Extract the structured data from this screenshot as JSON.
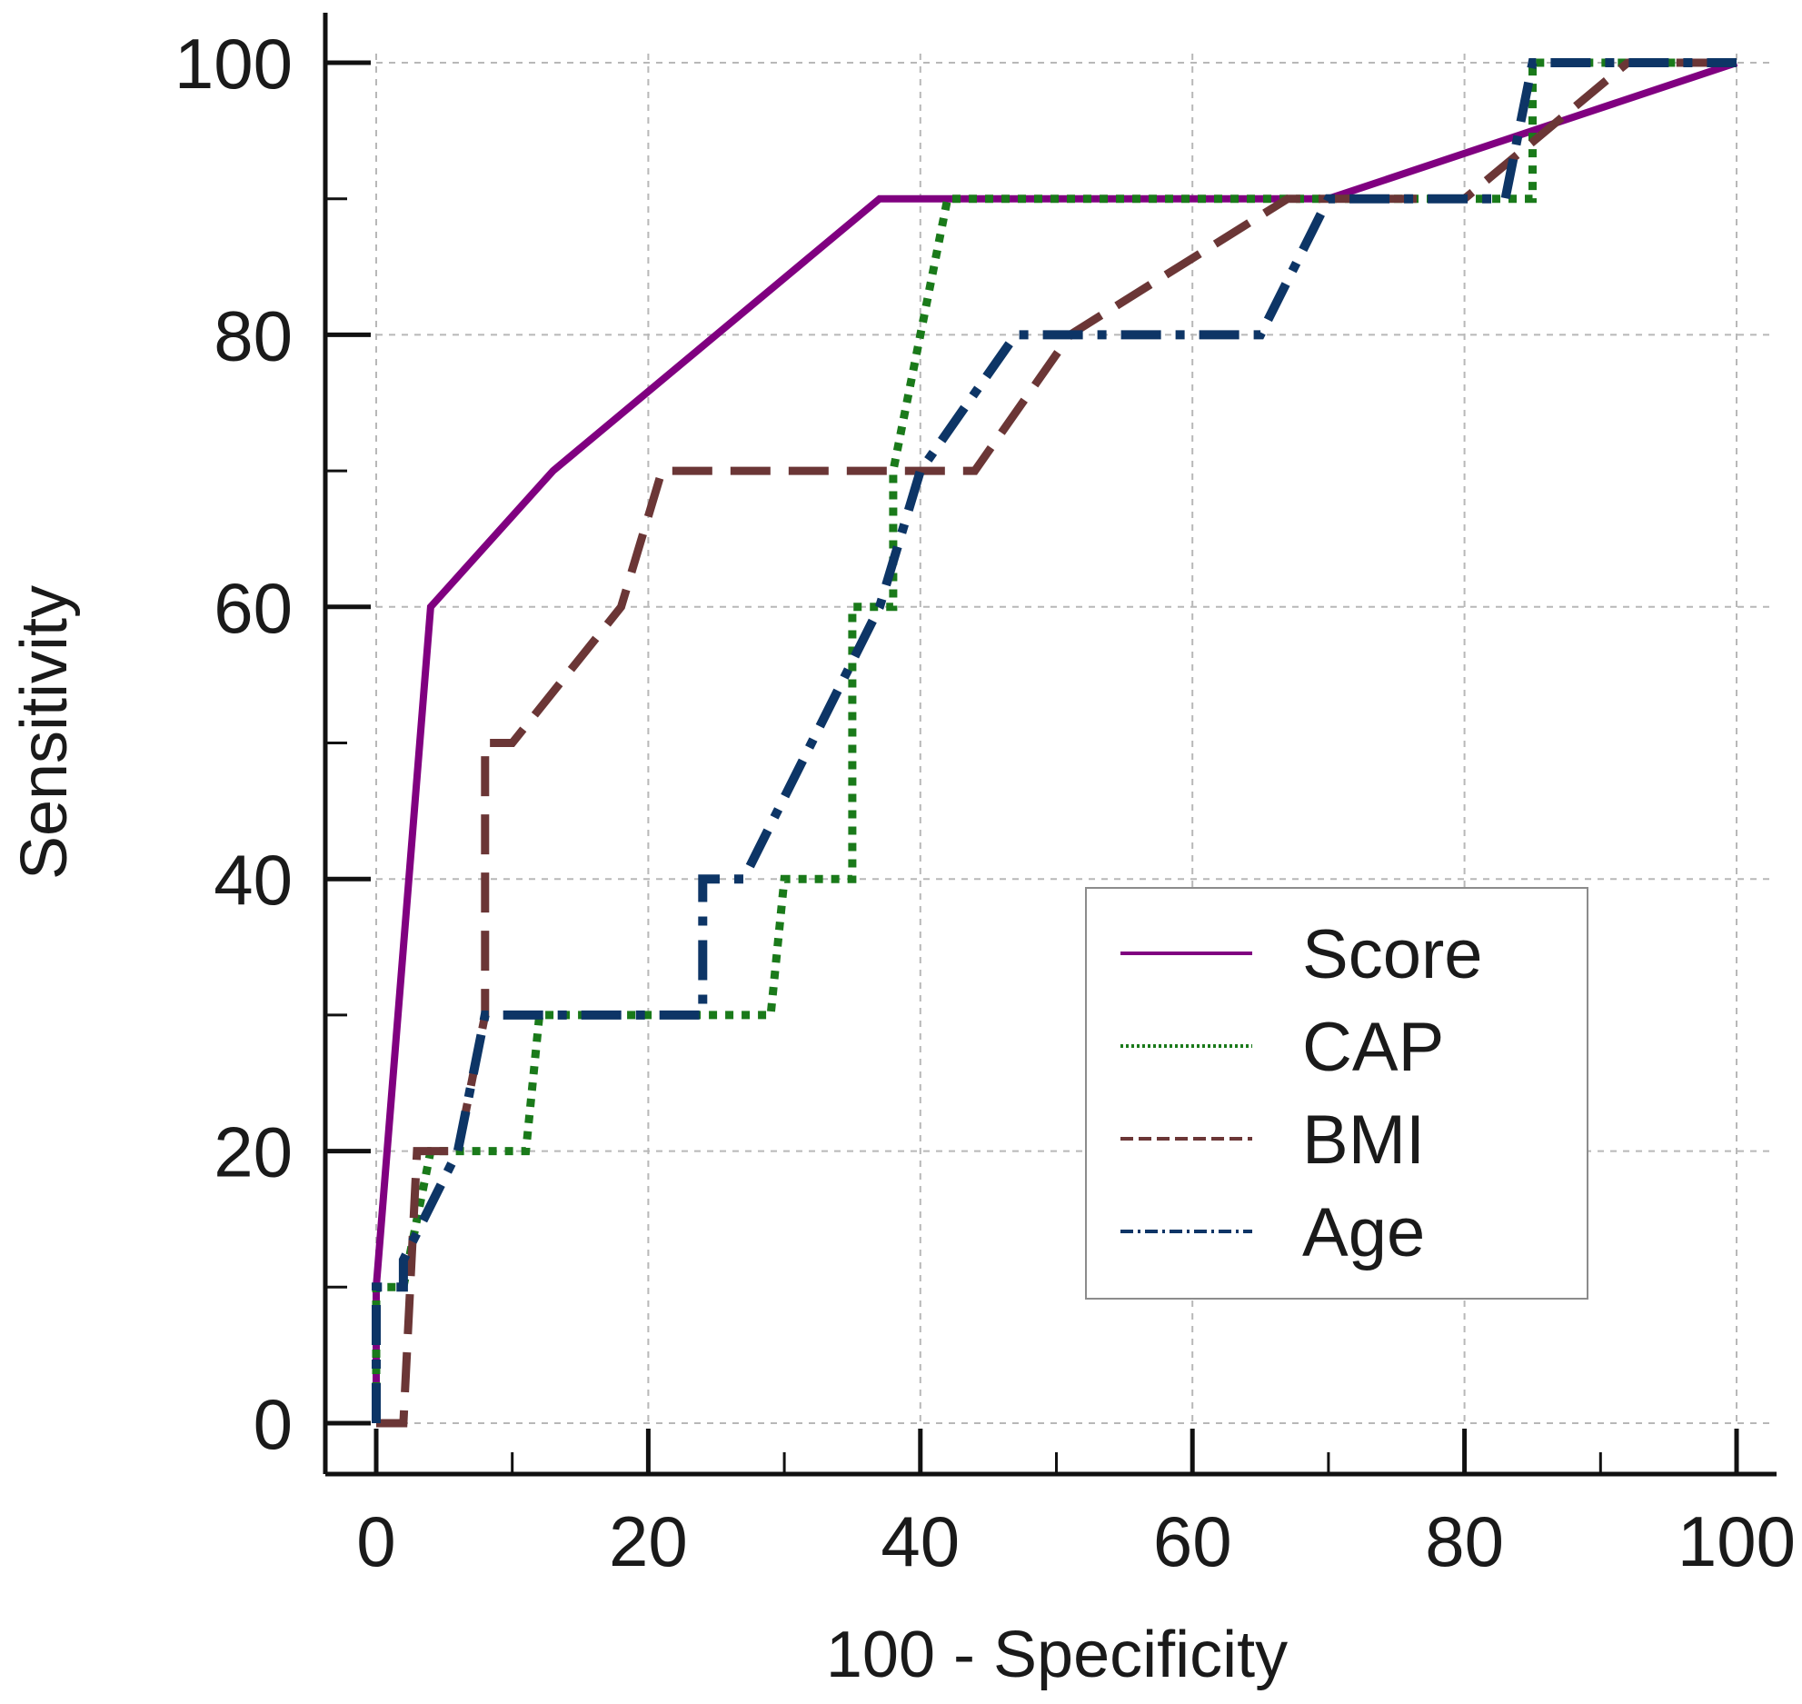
{
  "chart_data": {
    "type": "line",
    "xlabel": "100 - Specificity",
    "ylabel": "Sensitivity",
    "xlim": [
      0,
      100
    ],
    "ylim": [
      0,
      100
    ],
    "x_ticks": [
      0,
      20,
      40,
      60,
      80,
      100
    ],
    "y_ticks": [
      0,
      20,
      40,
      60,
      80,
      100
    ],
    "x_ticks_text": [
      "0",
      "20",
      "40",
      "60",
      "80",
      "100"
    ],
    "y_ticks_text": [
      "0",
      "20",
      "40",
      "60",
      "80",
      "100"
    ],
    "grid": true,
    "legend_position": "bottom-right",
    "series": [
      {
        "name": "Score",
        "color": "#800080",
        "dash": "solid",
        "points": [
          [
            0,
            0
          ],
          [
            0,
            10
          ],
          [
            4,
            60
          ],
          [
            13,
            70
          ],
          [
            37,
            90
          ],
          [
            70,
            90
          ],
          [
            100,
            100
          ]
        ]
      },
      {
        "name": "CAP",
        "color": "#1a7a1a",
        "dash": "dotted",
        "points": [
          [
            0,
            0
          ],
          [
            0,
            10
          ],
          [
            2,
            10
          ],
          [
            4,
            20
          ],
          [
            11,
            20
          ],
          [
            12,
            30
          ],
          [
            29,
            30
          ],
          [
            30,
            40
          ],
          [
            35,
            40
          ],
          [
            35,
            60
          ],
          [
            38,
            60
          ],
          [
            38,
            70
          ],
          [
            40,
            80
          ],
          [
            42,
            90
          ],
          [
            85,
            90
          ],
          [
            85,
            100
          ],
          [
            100,
            100
          ]
        ]
      },
      {
        "name": "BMI",
        "color": "#6b3636",
        "dash": "dashed",
        "points": [
          [
            0,
            0
          ],
          [
            2,
            0
          ],
          [
            3,
            20
          ],
          [
            6,
            20
          ],
          [
            8,
            30
          ],
          [
            8,
            50
          ],
          [
            10,
            50
          ],
          [
            18,
            60
          ],
          [
            21,
            70
          ],
          [
            44,
            70
          ],
          [
            51,
            80
          ],
          [
            67,
            90
          ],
          [
            80,
            90
          ],
          [
            92,
            100
          ],
          [
            100,
            100
          ]
        ]
      },
      {
        "name": "Age",
        "color": "#0d3566",
        "dash": "dashdot",
        "points": [
          [
            0,
            0
          ],
          [
            0,
            10
          ],
          [
            2,
            10
          ],
          [
            2,
            12
          ],
          [
            6,
            20
          ],
          [
            8,
            30
          ],
          [
            24,
            30
          ],
          [
            24,
            40
          ],
          [
            27,
            40
          ],
          [
            37,
            60
          ],
          [
            40,
            70
          ],
          [
            47,
            80
          ],
          [
            65,
            80
          ],
          [
            70,
            90
          ],
          [
            83,
            90
          ],
          [
            85,
            100
          ],
          [
            100,
            100
          ]
        ]
      }
    ]
  }
}
